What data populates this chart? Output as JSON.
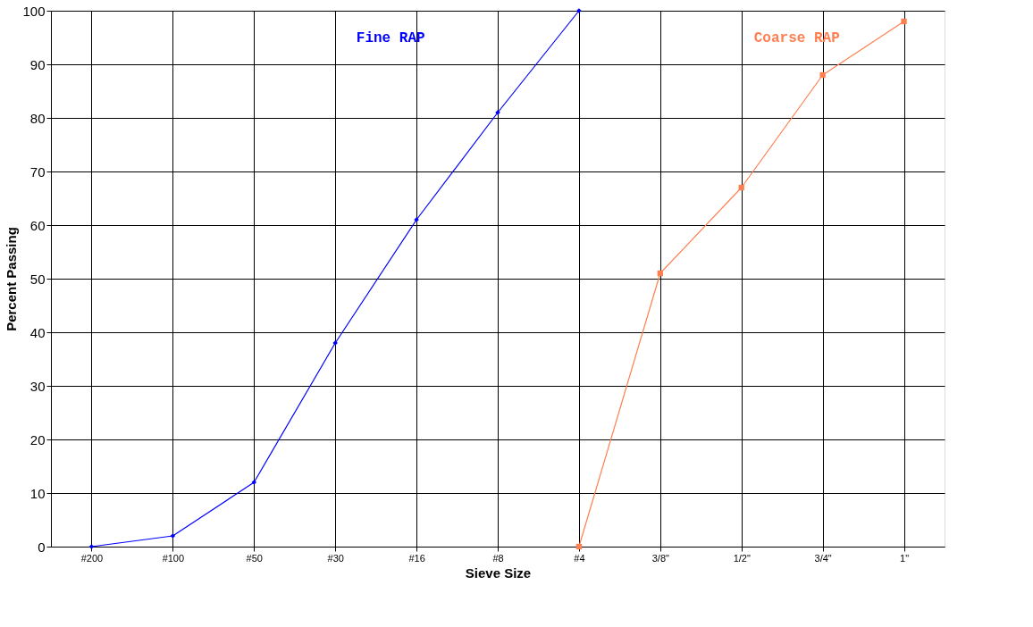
{
  "chart_data": {
    "type": "line",
    "xlabel": "Sieve Size",
    "ylabel": "Percent Passing",
    "categories": [
      "#200",
      "#100",
      "#50",
      "#30",
      "#16",
      "#8",
      "#4",
      "3/8\"",
      "1/2\"",
      "3/4\"",
      "1\""
    ],
    "ylim": [
      0,
      100
    ],
    "yticks": [
      0,
      10,
      20,
      30,
      40,
      50,
      60,
      70,
      80,
      90,
      100
    ],
    "grid": true,
    "series": [
      {
        "name": "Fine RAP",
        "color": "#0000ff",
        "marker": "diamond",
        "values": [
          0,
          2,
          12,
          38,
          61,
          81,
          100,
          null,
          null,
          null,
          null
        ]
      },
      {
        "name": "Coarse RAP",
        "color": "#ff7f50",
        "marker": "square",
        "values": [
          null,
          null,
          null,
          null,
          null,
          null,
          0,
          51,
          67,
          88,
          98
        ]
      }
    ]
  }
}
